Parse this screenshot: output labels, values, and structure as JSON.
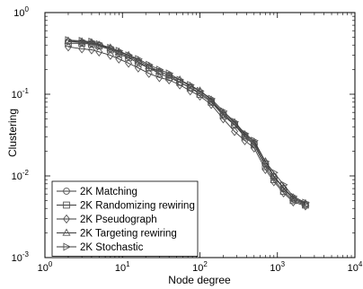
{
  "chart_data": {
    "type": "line",
    "title": "",
    "xlabel": "Node degree",
    "ylabel": "Clustering",
    "xscale": "log",
    "yscale": "log",
    "xlim": [
      1,
      10000
    ],
    "ylim": [
      0.001,
      1
    ],
    "grid": false,
    "legend_position": "bottom-left",
    "x_ticks": [
      {
        "value": 1,
        "base": "10",
        "exp": "0"
      },
      {
        "value": 10,
        "base": "10",
        "exp": "1"
      },
      {
        "value": 100,
        "base": "10",
        "exp": "2"
      },
      {
        "value": 1000,
        "base": "10",
        "exp": "3"
      },
      {
        "value": 10000,
        "base": "10",
        "exp": "4"
      }
    ],
    "y_ticks": [
      {
        "value": 0.001,
        "base": "10",
        "exp": "-3"
      },
      {
        "value": 0.01,
        "base": "10",
        "exp": "-2"
      },
      {
        "value": 0.1,
        "base": "10",
        "exp": "-1"
      },
      {
        "value": 1,
        "base": "10",
        "exp": "0"
      }
    ],
    "series": [
      {
        "name": "2K Matching",
        "marker": "circle",
        "x": [
          2,
          3,
          4,
          5,
          7,
          9,
          12,
          16,
          22,
          30,
          40,
          55,
          75,
          100,
          140,
          200,
          280,
          380,
          500,
          700,
          900,
          1200,
          1600,
          2300
        ],
        "y": [
          0.44,
          0.43,
          0.42,
          0.4,
          0.36,
          0.32,
          0.29,
          0.25,
          0.21,
          0.19,
          0.17,
          0.14,
          0.12,
          0.105,
          0.082,
          0.057,
          0.043,
          0.031,
          0.025,
          0.014,
          0.0098,
          0.007,
          0.0052,
          0.0045
        ]
      },
      {
        "name": "2K Randomizing rewiring",
        "marker": "square",
        "x": [
          2,
          3,
          4,
          5,
          7,
          9,
          12,
          16,
          22,
          30,
          40,
          55,
          75,
          100,
          140,
          200,
          280,
          380,
          500,
          700,
          900,
          1200,
          1600,
          2300
        ],
        "y": [
          0.42,
          0.42,
          0.41,
          0.39,
          0.35,
          0.31,
          0.28,
          0.24,
          0.21,
          0.18,
          0.16,
          0.14,
          0.12,
          0.1,
          0.08,
          0.055,
          0.042,
          0.03,
          0.024,
          0.013,
          0.009,
          0.0065,
          0.005,
          0.0044
        ]
      },
      {
        "name": "2K Pseudograph",
        "marker": "diamond",
        "x": [
          2,
          3,
          4,
          5,
          7,
          9,
          12,
          16,
          22,
          30,
          40,
          55,
          75,
          100,
          140,
          200,
          280,
          380,
          500,
          700,
          900,
          1200,
          1600,
          2300
        ],
        "y": [
          0.38,
          0.36,
          0.35,
          0.33,
          0.3,
          0.27,
          0.24,
          0.21,
          0.18,
          0.16,
          0.15,
          0.13,
          0.11,
          0.095,
          0.075,
          0.05,
          0.035,
          0.027,
          0.022,
          0.012,
          0.0085,
          0.0062,
          0.0048,
          0.0043
        ]
      },
      {
        "name": "2K Targeting rewiring",
        "marker": "triangle-up",
        "x": [
          2,
          3,
          4,
          5,
          7,
          9,
          12,
          16,
          22,
          30,
          40,
          55,
          75,
          100,
          140,
          200,
          280,
          380,
          500,
          700,
          900,
          1200,
          1600,
          2300
        ],
        "y": [
          0.45,
          0.44,
          0.43,
          0.4,
          0.37,
          0.33,
          0.3,
          0.26,
          0.22,
          0.19,
          0.17,
          0.15,
          0.125,
          0.11,
          0.085,
          0.059,
          0.045,
          0.032,
          0.026,
          0.015,
          0.01,
          0.0072,
          0.0054,
          0.0046
        ]
      },
      {
        "name": "2K Stochastic",
        "marker": "triangle-right",
        "x": [
          2,
          3,
          4,
          5,
          7,
          9,
          12,
          16,
          22,
          30,
          40,
          55,
          75,
          100,
          140,
          200,
          280,
          380,
          500,
          700,
          900,
          1200,
          1600,
          2300
        ],
        "y": [
          0.46,
          0.45,
          0.44,
          0.41,
          0.37,
          0.34,
          0.3,
          0.27,
          0.23,
          0.2,
          0.18,
          0.15,
          0.13,
          0.11,
          0.088,
          0.062,
          0.046,
          0.033,
          0.027,
          0.015,
          0.011,
          0.0078,
          0.0056,
          0.0047
        ]
      }
    ]
  }
}
